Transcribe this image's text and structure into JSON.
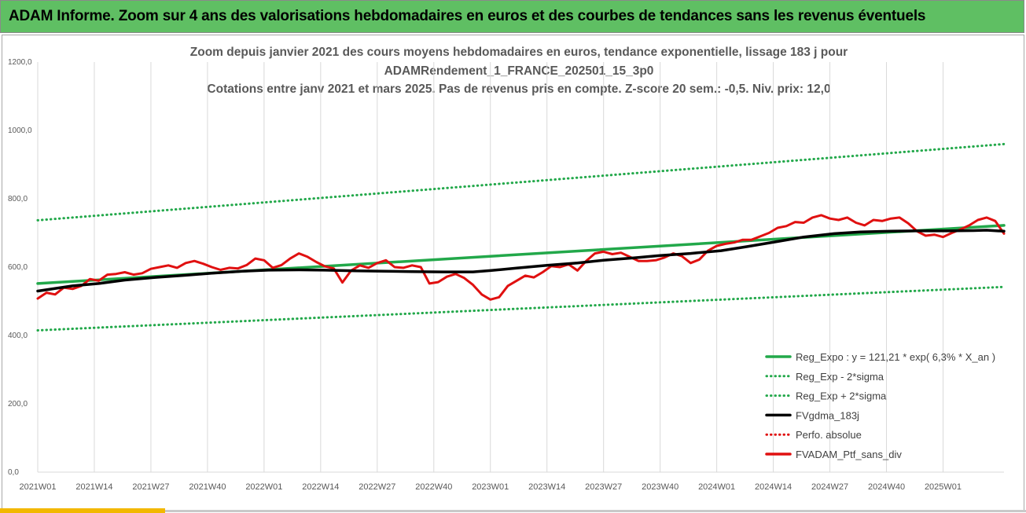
{
  "header": {
    "title": "ADAM Informe. Zoom sur 4 ans des valorisations hebdomadaires en euros et des courbes de tendances sans les revenus éventuels"
  },
  "colors": {
    "header_bg": "#5fbf63",
    "trend_green": "#22a84a",
    "sma_black": "#000000",
    "portfolio_red": "#e01010",
    "accent_yellow": "#f2b800"
  },
  "chart_data": {
    "type": "line",
    "title_lines": [
      "Zoom depuis janvier 2021 des cours moyens hebdomadaires  en euros, tendance exponentielle, lissage 183 j pour",
      "ADAMRendement_1_FRANCE_202501_15_3p0",
      "Cotations entre janv 2021 et mars 2025. Pas de revenus pris en compte. Z-score 20 sem.: -0,5. Niv. prix: 12,0"
    ],
    "ylim": [
      0,
      1200
    ],
    "yticks": [
      "0,0",
      "200,0",
      "400,0",
      "600,0",
      "800,0",
      "1000,0",
      "1200,0"
    ],
    "xticks": [
      "2021W01",
      "2021W14",
      "2021W27",
      "2021W40",
      "2022W01",
      "2022W14",
      "2022W27",
      "2022W40",
      "2023W01",
      "2023W14",
      "2023W27",
      "2023W40",
      "2024W01",
      "2024W14",
      "2024W27",
      "2024W40",
      "2025W01"
    ],
    "x_week_index_range": [
      0,
      222
    ],
    "grid": "vertical",
    "legend_position": "bottom-right",
    "series": [
      {
        "name": "Reg_Expo : y = 121,21 * exp( 6,3% *  X_an )",
        "style": "solid",
        "color": "#22a84a",
        "points": [
          [
            0,
            552
          ],
          [
            222,
            722
          ]
        ]
      },
      {
        "name": "Reg_Exp - 2*sigma",
        "style": "dotted",
        "color": "#22a84a",
        "points": [
          [
            0,
            415
          ],
          [
            222,
            542
          ]
        ]
      },
      {
        "name": "Reg_Exp + 2*sigma",
        "style": "dotted",
        "color": "#22a84a",
        "points": [
          [
            0,
            737
          ],
          [
            222,
            960
          ]
        ]
      },
      {
        "name": "FVgdma_183j",
        "style": "solid",
        "color": "#000000",
        "points": [
          [
            0,
            530
          ],
          [
            8,
            545
          ],
          [
            14,
            552
          ],
          [
            20,
            562
          ],
          [
            27,
            570
          ],
          [
            34,
            576
          ],
          [
            40,
            582
          ],
          [
            47,
            588
          ],
          [
            53,
            591
          ],
          [
            60,
            592
          ],
          [
            66,
            591
          ],
          [
            73,
            589
          ],
          [
            80,
            588
          ],
          [
            86,
            587
          ],
          [
            93,
            586
          ],
          [
            100,
            586
          ],
          [
            104,
            590
          ],
          [
            110,
            597
          ],
          [
            117,
            605
          ],
          [
            124,
            612
          ],
          [
            130,
            620
          ],
          [
            137,
            627
          ],
          [
            143,
            634
          ],
          [
            150,
            640
          ],
          [
            157,
            648
          ],
          [
            163,
            660
          ],
          [
            170,
            675
          ],
          [
            176,
            688
          ],
          [
            183,
            698
          ],
          [
            189,
            703
          ],
          [
            196,
            705
          ],
          [
            202,
            706
          ],
          [
            209,
            706
          ],
          [
            215,
            707
          ],
          [
            218,
            708
          ],
          [
            222,
            705
          ]
        ]
      },
      {
        "name": "Perfo. absolue",
        "style": "dotted",
        "color": "#e01010",
        "points": []
      },
      {
        "name": "FVADAM_Ptf_sans_div",
        "style": "solid",
        "color": "#e01010",
        "points": [
          [
            0,
            508
          ],
          [
            2,
            525
          ],
          [
            4,
            520
          ],
          [
            6,
            540
          ],
          [
            8,
            536
          ],
          [
            10,
            545
          ],
          [
            12,
            565
          ],
          [
            14,
            560
          ],
          [
            16,
            578
          ],
          [
            18,
            580
          ],
          [
            20,
            585
          ],
          [
            22,
            578
          ],
          [
            24,
            582
          ],
          [
            26,
            595
          ],
          [
            28,
            600
          ],
          [
            30,
            605
          ],
          [
            32,
            598
          ],
          [
            34,
            612
          ],
          [
            36,
            618
          ],
          [
            38,
            610
          ],
          [
            40,
            600
          ],
          [
            42,
            592
          ],
          [
            44,
            598
          ],
          [
            46,
            596
          ],
          [
            48,
            606
          ],
          [
            50,
            625
          ],
          [
            52,
            620
          ],
          [
            54,
            598
          ],
          [
            56,
            606
          ],
          [
            58,
            625
          ],
          [
            60,
            640
          ],
          [
            62,
            630
          ],
          [
            64,
            615
          ],
          [
            66,
            602
          ],
          [
            68,
            596
          ],
          [
            70,
            555
          ],
          [
            72,
            590
          ],
          [
            74,
            605
          ],
          [
            76,
            598
          ],
          [
            78,
            612
          ],
          [
            80,
            620
          ],
          [
            82,
            600
          ],
          [
            84,
            598
          ],
          [
            86,
            605
          ],
          [
            88,
            600
          ],
          [
            90,
            552
          ],
          [
            92,
            556
          ],
          [
            94,
            572
          ],
          [
            96,
            580
          ],
          [
            98,
            568
          ],
          [
            100,
            548
          ],
          [
            102,
            520
          ],
          [
            104,
            505
          ],
          [
            106,
            512
          ],
          [
            108,
            545
          ],
          [
            110,
            560
          ],
          [
            112,
            575
          ],
          [
            114,
            570
          ],
          [
            116,
            585
          ],
          [
            118,
            603
          ],
          [
            120,
            600
          ],
          [
            122,
            608
          ],
          [
            124,
            590
          ],
          [
            126,
            618
          ],
          [
            128,
            640
          ],
          [
            130,
            645
          ],
          [
            132,
            638
          ],
          [
            134,
            642
          ],
          [
            136,
            630
          ],
          [
            138,
            618
          ],
          [
            140,
            618
          ],
          [
            142,
            620
          ],
          [
            144,
            628
          ],
          [
            146,
            640
          ],
          [
            148,
            632
          ],
          [
            150,
            612
          ],
          [
            152,
            622
          ],
          [
            154,
            648
          ],
          [
            156,
            662
          ],
          [
            158,
            668
          ],
          [
            160,
            672
          ],
          [
            162,
            680
          ],
          [
            164,
            680
          ],
          [
            166,
            690
          ],
          [
            168,
            700
          ],
          [
            170,
            715
          ],
          [
            172,
            720
          ],
          [
            174,
            732
          ],
          [
            176,
            730
          ],
          [
            178,
            745
          ],
          [
            180,
            752
          ],
          [
            182,
            742
          ],
          [
            184,
            738
          ],
          [
            186,
            745
          ],
          [
            188,
            730
          ],
          [
            190,
            722
          ],
          [
            192,
            738
          ],
          [
            194,
            735
          ],
          [
            196,
            742
          ],
          [
            198,
            745
          ],
          [
            200,
            728
          ],
          [
            202,
            705
          ],
          [
            204,
            692
          ],
          [
            206,
            695
          ],
          [
            208,
            688
          ],
          [
            210,
            700
          ],
          [
            212,
            710
          ],
          [
            214,
            722
          ],
          [
            216,
            738
          ],
          [
            218,
            745
          ],
          [
            220,
            735
          ],
          [
            222,
            698
          ]
        ]
      }
    ]
  }
}
